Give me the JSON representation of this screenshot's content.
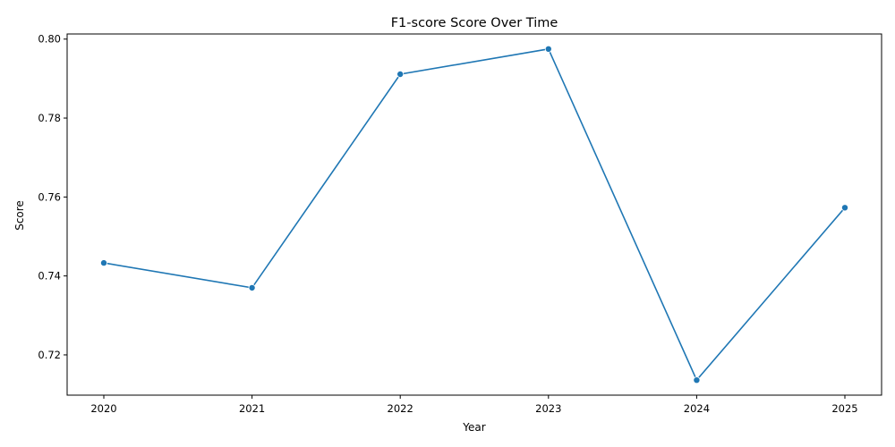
{
  "chart_data": {
    "type": "line",
    "title": "F1-score Score Over Time",
    "xlabel": "Year",
    "ylabel": "Score",
    "x": [
      "2020",
      "2021",
      "2022",
      "2023",
      "2024",
      "2025"
    ],
    "series": [
      {
        "values": [
          0.7433,
          0.737,
          0.7911,
          0.7975,
          0.7136,
          0.7573
        ],
        "color": "#1f77b4",
        "marker": "circle"
      }
    ],
    "ylim": [
      0.7098,
      0.8013
    ],
    "yticks": [
      "0.72",
      "0.74",
      "0.76",
      "0.78",
      "0.80"
    ],
    "grid": false,
    "legend": "none"
  }
}
